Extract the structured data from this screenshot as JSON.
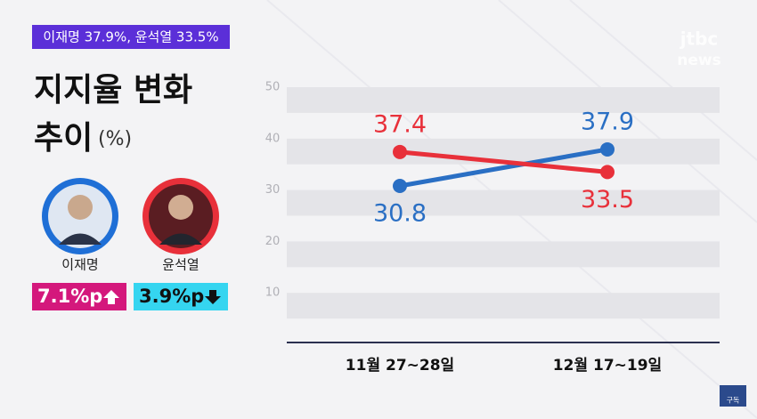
{
  "headline": "이재명 37.9%, 윤석열 33.5%",
  "logo": "jtbc",
  "logo_sub": "news",
  "subscribe": "구독",
  "badges": [
    "7.1%p",
    "3.9%p"
  ],
  "chart_data": {
    "type": "line",
    "title": [
      "지지율 변화",
      "추이"
    ],
    "unit_label": "(%)",
    "categories": [
      "11월 27~28일",
      "12월 17~19일"
    ],
    "series": [
      {
        "name": "이재명",
        "color": "#2a6fc4",
        "values": [
          30.8,
          37.9
        ]
      },
      {
        "name": "윤석열",
        "color": "#e8303a",
        "values": [
          37.4,
          33.5
        ]
      }
    ],
    "ylim": [
      0,
      50
    ],
    "yticks": [
      10,
      20,
      30,
      40,
      50
    ],
    "grid": true
  }
}
